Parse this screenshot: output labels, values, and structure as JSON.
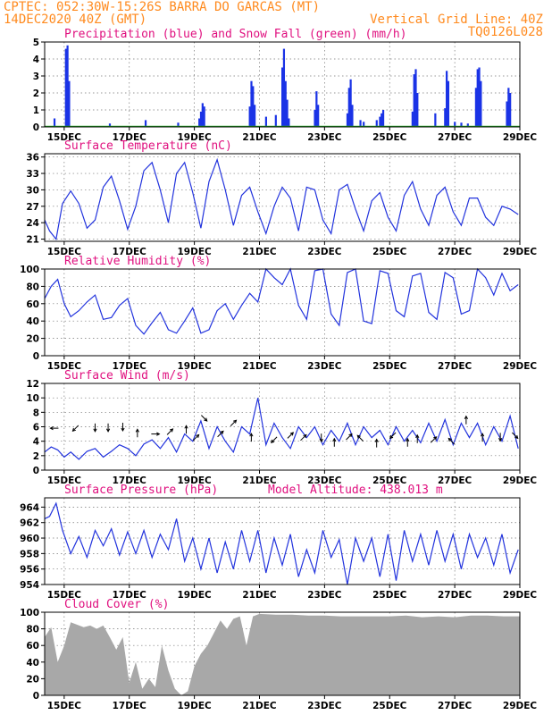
{
  "header": {
    "line1": "CPTEC:   052:30W-15:26S  BARRA DO GARCAS (MT)",
    "line2": "14DEC2020 40Z (GMT)",
    "grid_note": "Vertical Grid Line: 40Z",
    "code": "TQ0126L028"
  },
  "colors": {
    "header": "#ff8a1e",
    "title": "#e0107f",
    "precip": "#1a33e6",
    "snow": "#22aa22",
    "line": "#2233dd",
    "cloud": "#a8a8a8",
    "wind_arrow": "#000000"
  },
  "chart_data": [
    {
      "type": "bar",
      "title": "Precipitation (blue) and Snow Fall (green) (mm/h)",
      "x_range": [
        14.4,
        29.0
      ],
      "ylim": [
        0,
        5
      ],
      "yticks": [
        0,
        1,
        2,
        3,
        4,
        5
      ],
      "xticks": [
        "15DEC",
        "17DEC",
        "19DEC",
        "21DEC",
        "23DEC",
        "25DEC",
        "27DEC",
        "29DEC"
      ],
      "xtick_days": [
        15,
        17,
        19,
        21,
        23,
        25,
        27,
        29
      ],
      "grid": true,
      "series": [
        {
          "name": "Precipitation",
          "points": [
            [
              14.7,
              0.5
            ],
            [
              15.05,
              4.6
            ],
            [
              15.1,
              4.8
            ],
            [
              15.15,
              2.7
            ],
            [
              16.4,
              0.2
            ],
            [
              17.5,
              0.4
            ],
            [
              18.5,
              0.25
            ],
            [
              19.15,
              0.5
            ],
            [
              19.2,
              0.9
            ],
            [
              19.25,
              1.4
            ],
            [
              19.3,
              1.2
            ],
            [
              20.7,
              1.2
            ],
            [
              20.75,
              2.7
            ],
            [
              20.8,
              2.4
            ],
            [
              20.85,
              1.3
            ],
            [
              21.2,
              0.6
            ],
            [
              21.5,
              0.7
            ],
            [
              21.7,
              3.5
            ],
            [
              21.75,
              4.6
            ],
            [
              21.8,
              2.7
            ],
            [
              21.85,
              1.6
            ],
            [
              21.9,
              0.5
            ],
            [
              22.7,
              1.0
            ],
            [
              22.75,
              2.1
            ],
            [
              22.8,
              1.3
            ],
            [
              23.7,
              0.8
            ],
            [
              23.75,
              2.3
            ],
            [
              23.8,
              2.8
            ],
            [
              23.85,
              1.3
            ],
            [
              24.1,
              0.4
            ],
            [
              24.2,
              0.3
            ],
            [
              24.6,
              0.4
            ],
            [
              24.7,
              0.6
            ],
            [
              24.75,
              0.8
            ],
            [
              24.8,
              1.0
            ],
            [
              25.7,
              0.9
            ],
            [
              25.75,
              3.1
            ],
            [
              25.8,
              3.4
            ],
            [
              25.85,
              2.0
            ],
            [
              26.4,
              0.8
            ],
            [
              26.7,
              1.1
            ],
            [
              26.75,
              3.3
            ],
            [
              26.8,
              2.7
            ],
            [
              27.0,
              0.3
            ],
            [
              27.2,
              0.25
            ],
            [
              27.4,
              0.2
            ],
            [
              27.65,
              2.3
            ],
            [
              27.7,
              3.4
            ],
            [
              27.75,
              3.5
            ],
            [
              27.8,
              2.7
            ],
            [
              28.6,
              1.5
            ],
            [
              28.65,
              2.3
            ],
            [
              28.7,
              2.0
            ]
          ]
        },
        {
          "name": "Snow Fall",
          "points": []
        }
      ]
    },
    {
      "type": "line",
      "title": "Surface Temperature (nC)",
      "x_range": [
        14.4,
        29.0
      ],
      "ylim": [
        20.6,
        36.6
      ],
      "yticks": [
        21,
        24,
        27,
        30,
        33,
        36
      ],
      "xticks": [
        "15DEC",
        "17DEC",
        "19DEC",
        "21DEC",
        "23DEC",
        "25DEC",
        "27DEC",
        "29DEC"
      ],
      "xtick_days": [
        15,
        17,
        19,
        21,
        23,
        25,
        27,
        29
      ],
      "grid": true,
      "x": [
        14.4,
        14.55,
        14.75,
        14.95,
        15.2,
        15.45,
        15.7,
        15.95,
        16.2,
        16.45,
        16.7,
        16.95,
        17.2,
        17.45,
        17.7,
        17.95,
        18.2,
        18.45,
        18.7,
        18.95,
        19.2,
        19.45,
        19.7,
        19.95,
        20.2,
        20.45,
        20.7,
        20.95,
        21.2,
        21.45,
        21.7,
        21.95,
        22.2,
        22.45,
        22.7,
        22.95,
        23.2,
        23.45,
        23.7,
        23.95,
        24.2,
        24.45,
        24.7,
        24.95,
        25.2,
        25.45,
        25.7,
        25.95,
        26.2,
        26.45,
        26.7,
        26.95,
        27.2,
        27.45,
        27.7,
        27.95,
        28.2,
        28.45,
        28.7,
        28.95
      ],
      "y": [
        24.5,
        22.5,
        21.0,
        27.5,
        29.8,
        27.5,
        23.0,
        24.5,
        30.5,
        32.5,
        28.0,
        22.8,
        27.0,
        33.5,
        35.0,
        30.0,
        24.0,
        33.0,
        35.0,
        29.5,
        23.0,
        31.5,
        35.5,
        30.0,
        23.5,
        29.0,
        30.5,
        26.0,
        22.0,
        27.0,
        30.5,
        28.5,
        22.5,
        30.5,
        30.0,
        24.5,
        22.0,
        30.0,
        31.0,
        26.5,
        22.5,
        28.0,
        29.5,
        25.0,
        22.5,
        29.0,
        31.5,
        26.5,
        23.5,
        29.0,
        30.5,
        26.0,
        23.5,
        28.5,
        28.5,
        25.0,
        23.5,
        27.0,
        26.5,
        25.5
      ]
    },
    {
      "type": "line",
      "title": "Relative Humidity (%)",
      "x_range": [
        14.4,
        29.0
      ],
      "ylim": [
        0,
        100
      ],
      "yticks": [
        0,
        20,
        40,
        60,
        80,
        100
      ],
      "xticks": [
        "15DEC",
        "17DEC",
        "19DEC",
        "21DEC",
        "23DEC",
        "25DEC",
        "27DEC",
        "29DEC"
      ],
      "xtick_days": [
        15,
        17,
        19,
        21,
        23,
        25,
        27,
        29
      ],
      "grid": true,
      "x": [
        14.4,
        14.6,
        14.8,
        15.0,
        15.2,
        15.45,
        15.7,
        15.95,
        16.2,
        16.45,
        16.7,
        16.95,
        17.2,
        17.45,
        17.7,
        17.95,
        18.2,
        18.45,
        18.7,
        18.95,
        19.2,
        19.45,
        19.7,
        19.95,
        20.2,
        20.45,
        20.7,
        20.95,
        21.2,
        21.45,
        21.7,
        21.95,
        22.2,
        22.45,
        22.7,
        22.95,
        23.2,
        23.45,
        23.7,
        23.95,
        24.2,
        24.45,
        24.7,
        24.95,
        25.2,
        25.45,
        25.7,
        25.95,
        26.2,
        26.45,
        26.7,
        26.95,
        27.2,
        27.45,
        27.7,
        27.95,
        28.2,
        28.45,
        28.7,
        28.95
      ],
      "y": [
        66,
        80,
        88,
        60,
        45,
        52,
        62,
        70,
        42,
        44,
        58,
        66,
        35,
        25,
        38,
        50,
        30,
        26,
        40,
        55,
        26,
        30,
        52,
        60,
        42,
        58,
        72,
        62,
        100,
        90,
        82,
        100,
        58,
        42,
        98,
        100,
        48,
        35,
        96,
        100,
        40,
        37,
        98,
        95,
        52,
        45,
        92,
        95,
        50,
        42,
        96,
        90,
        48,
        52,
        100,
        90,
        70,
        95,
        75,
        82
      ]
    },
    {
      "type": "line",
      "title": "Surface Wind (m/s)",
      "x_range": [
        14.4,
        29.0
      ],
      "ylim": [
        0,
        12
      ],
      "yticks": [
        0,
        2,
        4,
        6,
        8,
        10,
        12
      ],
      "xticks": [
        "15DEC",
        "17DEC",
        "19DEC",
        "21DEC",
        "23DEC",
        "25DEC",
        "27DEC",
        "29DEC"
      ],
      "xtick_days": [
        15,
        17,
        19,
        21,
        23,
        25,
        27,
        29
      ],
      "grid": true,
      "x": [
        14.4,
        14.6,
        14.8,
        15.0,
        15.2,
        15.45,
        15.7,
        15.95,
        16.2,
        16.45,
        16.7,
        16.95,
        17.2,
        17.45,
        17.7,
        17.95,
        18.2,
        18.45,
        18.7,
        18.95,
        19.2,
        19.45,
        19.7,
        19.95,
        20.2,
        20.45,
        20.7,
        20.95,
        21.2,
        21.45,
        21.7,
        21.95,
        22.2,
        22.45,
        22.7,
        22.95,
        23.2,
        23.45,
        23.7,
        23.95,
        24.2,
        24.45,
        24.7,
        24.95,
        25.2,
        25.45,
        25.7,
        25.95,
        26.2,
        26.45,
        26.7,
        26.95,
        27.2,
        27.45,
        27.7,
        27.95,
        28.2,
        28.45,
        28.7,
        28.95
      ],
      "y": [
        2.5,
        3.2,
        2.8,
        1.8,
        2.5,
        1.5,
        2.6,
        3.0,
        1.8,
        2.6,
        3.5,
        3.0,
        2.0,
        3.6,
        4.2,
        3.0,
        4.5,
        2.5,
        5.0,
        4.0,
        6.8,
        3.0,
        6.0,
        4.0,
        2.5,
        6.0,
        5.0,
        10.0,
        3.5,
        6.5,
        4.5,
        3.0,
        6.0,
        4.5,
        6.0,
        3.5,
        5.5,
        4.0,
        6.5,
        3.5,
        6.0,
        4.5,
        5.5,
        3.5,
        6.0,
        4.0,
        5.5,
        3.8,
        6.5,
        4.0,
        7.0,
        3.5,
        6.5,
        4.5,
        6.5,
        3.5,
        6.0,
        4.0,
        7.5,
        3.0
      ]
    },
    {
      "type": "line",
      "title": "Surface Pressure (hPa)",
      "annotation": "Model Altitude: 438.013 m",
      "x_range": [
        14.4,
        29.0
      ],
      "ylim": [
        954,
        965.2
      ],
      "yticks": [
        954,
        956,
        958,
        960,
        962,
        964
      ],
      "xticks": [
        "15DEC",
        "17DEC",
        "19DEC",
        "21DEC",
        "23DEC",
        "25DEC",
        "27DEC",
        "29DEC"
      ],
      "xtick_days": [
        15,
        17,
        19,
        21,
        23,
        25,
        27,
        29
      ],
      "grid": true,
      "x": [
        14.4,
        14.55,
        14.75,
        14.95,
        15.2,
        15.45,
        15.7,
        15.95,
        16.2,
        16.45,
        16.7,
        16.95,
        17.2,
        17.45,
        17.7,
        17.95,
        18.2,
        18.45,
        18.7,
        18.95,
        19.2,
        19.45,
        19.7,
        19.95,
        20.2,
        20.45,
        20.7,
        20.95,
        21.2,
        21.45,
        21.7,
        21.95,
        22.2,
        22.45,
        22.7,
        22.95,
        23.2,
        23.45,
        23.7,
        23.95,
        24.2,
        24.45,
        24.7,
        24.95,
        25.2,
        25.45,
        25.7,
        25.95,
        26.2,
        26.45,
        26.7,
        26.95,
        27.2,
        27.45,
        27.7,
        27.95,
        28.2,
        28.45,
        28.7,
        28.95
      ],
      "y": [
        962.5,
        962.8,
        964.5,
        961.0,
        958.0,
        960.2,
        957.5,
        961.0,
        959.0,
        961.2,
        957.8,
        960.8,
        958.0,
        961.0,
        957.5,
        960.5,
        958.5,
        962.5,
        957.0,
        960.0,
        956.0,
        960.0,
        955.5,
        959.5,
        956.0,
        961.0,
        957.0,
        961.0,
        955.5,
        960.0,
        956.5,
        960.5,
        955.0,
        958.5,
        955.5,
        961.0,
        957.5,
        959.8,
        954.0,
        960.0,
        957.0,
        960.0,
        955.0,
        960.5,
        954.5,
        961.0,
        957.0,
        960.5,
        956.5,
        961.0,
        957.0,
        960.5,
        956.0,
        960.5,
        957.5,
        960.0,
        956.5,
        960.5,
        955.5,
        958.5
      ]
    },
    {
      "type": "area",
      "title": "Cloud Cover (%)",
      "x_range": [
        14.4,
        29.0
      ],
      "ylim": [
        0,
        100
      ],
      "yticks": [
        0,
        20,
        40,
        60,
        80,
        100
      ],
      "xticks": [
        "15DEC",
        "17DEC",
        "19DEC",
        "21DEC",
        "23DEC",
        "25DEC",
        "27DEC",
        "29DEC"
      ],
      "xtick_days": [
        15,
        17,
        19,
        21,
        23,
        25,
        27,
        29
      ],
      "grid": true,
      "x": [
        14.4,
        14.6,
        14.8,
        15.0,
        15.2,
        15.4,
        15.6,
        15.8,
        16.0,
        16.2,
        16.4,
        16.6,
        16.8,
        17.0,
        17.2,
        17.4,
        17.6,
        17.8,
        18.0,
        18.2,
        18.4,
        18.6,
        18.8,
        19.0,
        19.2,
        19.4,
        19.6,
        19.8,
        20.0,
        20.2,
        20.4,
        20.6,
        20.8,
        21.0,
        21.5,
        22.0,
        22.5,
        23.0,
        23.5,
        24.0,
        24.5,
        25.0,
        25.5,
        26.0,
        26.5,
        27.0,
        27.5,
        28.0,
        28.5,
        29.0
      ],
      "y": [
        70,
        82,
        40,
        60,
        88,
        85,
        82,
        84,
        80,
        84,
        70,
        55,
        70,
        15,
        40,
        8,
        20,
        10,
        60,
        30,
        8,
        0,
        5,
        35,
        50,
        60,
        75,
        90,
        80,
        92,
        95,
        60,
        95,
        98,
        97,
        97,
        96,
        96,
        95,
        95,
        95,
        95,
        96,
        94,
        95,
        94,
        96,
        96,
        95,
        95
      ]
    }
  ],
  "wind_arrows": [
    {
      "day": 14.7,
      "speed": 5.8,
      "dir": "W"
    },
    {
      "day": 15.35,
      "speed": 5.8,
      "dir": "SW"
    },
    {
      "day": 15.95,
      "speed": 5.9,
      "dir": "S"
    },
    {
      "day": 16.35,
      "speed": 5.9,
      "dir": "S"
    },
    {
      "day": 16.8,
      "speed": 6.0,
      "dir": "S"
    },
    {
      "day": 17.25,
      "speed": 5.1,
      "dir": "N"
    },
    {
      "day": 17.8,
      "speed": 5.0,
      "dir": "E"
    },
    {
      "day": 18.25,
      "speed": 5.3,
      "dir": "NE"
    },
    {
      "day": 18.75,
      "speed": 5.6,
      "dir": "N"
    },
    {
      "day": 19.05,
      "speed": 4.5,
      "dir": "NE"
    },
    {
      "day": 19.3,
      "speed": 7.2,
      "dir": "SE"
    },
    {
      "day": 19.8,
      "speed": 5.0,
      "dir": "NE"
    },
    {
      "day": 20.2,
      "speed": 6.5,
      "dir": "NE"
    },
    {
      "day": 20.75,
      "speed": 4.5,
      "dir": "N"
    },
    {
      "day": 21.45,
      "speed": 4.2,
      "dir": "SW"
    },
    {
      "day": 21.95,
      "speed": 4.8,
      "dir": "NE"
    },
    {
      "day": 22.35,
      "speed": 4.5,
      "dir": "NE"
    },
    {
      "day": 22.9,
      "speed": 4.5,
      "dir": "S"
    },
    {
      "day": 23.3,
      "speed": 3.8,
      "dir": "N"
    },
    {
      "day": 23.75,
      "speed": 4.6,
      "dir": "NE"
    },
    {
      "day": 24.1,
      "speed": 4.4,
      "dir": "NW"
    },
    {
      "day": 24.6,
      "speed": 3.7,
      "dir": "N"
    },
    {
      "day": 25.1,
      "speed": 4.8,
      "dir": "SW"
    },
    {
      "day": 25.55,
      "speed": 3.8,
      "dir": "N"
    },
    {
      "day": 25.85,
      "speed": 4.3,
      "dir": "N"
    },
    {
      "day": 26.35,
      "speed": 4.2,
      "dir": "NE"
    },
    {
      "day": 26.9,
      "speed": 4.0,
      "dir": "NW"
    },
    {
      "day": 27.35,
      "speed": 6.9,
      "dir": "N"
    },
    {
      "day": 27.85,
      "speed": 4.5,
      "dir": "N"
    },
    {
      "day": 28.4,
      "speed": 4.6,
      "dir": "S"
    },
    {
      "day": 28.85,
      "speed": 4.8,
      "dir": "SE"
    }
  ]
}
